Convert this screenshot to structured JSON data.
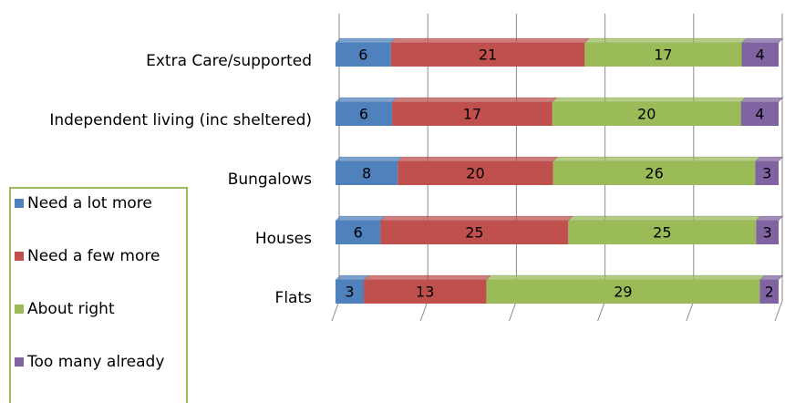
{
  "chart_data": {
    "type": "stacked_bar_100",
    "categories": [
      "Extra Care/supported",
      "Independent living (inc sheltered)",
      "Bungalows",
      "Houses",
      "Flats"
    ],
    "series": [
      {
        "name": "Need a lot more",
        "color": "#4f81bd",
        "values": [
          6,
          6,
          8,
          6,
          3
        ]
      },
      {
        "name": "Need a few more",
        "color": "#c0504d",
        "values": [
          21,
          17,
          20,
          25,
          13
        ]
      },
      {
        "name": "About right",
        "color": "#9bbb59",
        "values": [
          17,
          20,
          26,
          25,
          29
        ]
      },
      {
        "name": "Too many already",
        "color": "#8064a2",
        "values": [
          4,
          4,
          3,
          3,
          2
        ]
      }
    ],
    "xlim": [
      0,
      100
    ],
    "xticks": [
      0,
      20,
      40,
      60,
      80,
      100
    ],
    "grid": true,
    "legend": "bottom-left"
  }
}
